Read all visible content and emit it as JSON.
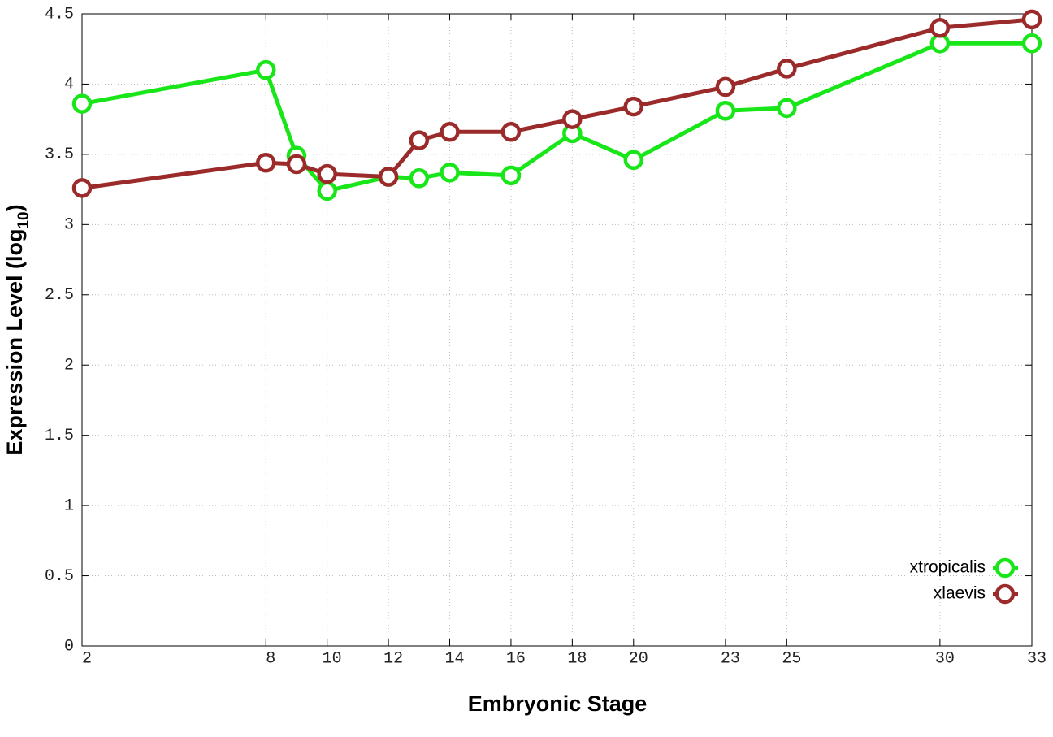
{
  "chart_data": {
    "type": "line",
    "x_label": "Embryonic Stage",
    "y_label": {
      "text": "Expression Level (log",
      "subscript": "10",
      "suffix": ")"
    },
    "x": [
      2,
      8,
      9,
      10,
      12,
      13,
      14,
      16,
      18,
      20,
      23,
      25,
      30,
      33
    ],
    "series": [
      {
        "name": "xtropicalis",
        "color": "#19e619",
        "values": [
          3.86,
          4.1,
          3.49,
          3.24,
          3.34,
          3.33,
          3.37,
          3.35,
          3.65,
          3.46,
          3.81,
          3.83,
          4.29,
          4.29
        ]
      },
      {
        "name": "xlaevis",
        "color": "#9b2a2a",
        "values": [
          3.26,
          3.44,
          3.43,
          3.36,
          3.34,
          3.6,
          3.66,
          3.66,
          3.75,
          3.84,
          3.98,
          4.11,
          4.4,
          4.46
        ]
      }
    ],
    "xlim": [
      2,
      33
    ],
    "xticks": [
      2,
      8,
      10,
      12,
      14,
      16,
      18,
      20,
      23,
      25,
      30,
      33
    ],
    "ylim": [
      0,
      4.5
    ],
    "yticks": [
      0,
      0.5,
      1,
      1.5,
      2,
      2.5,
      3,
      3.5,
      4,
      4.5
    ],
    "grid": true,
    "legend": "lower right"
  }
}
